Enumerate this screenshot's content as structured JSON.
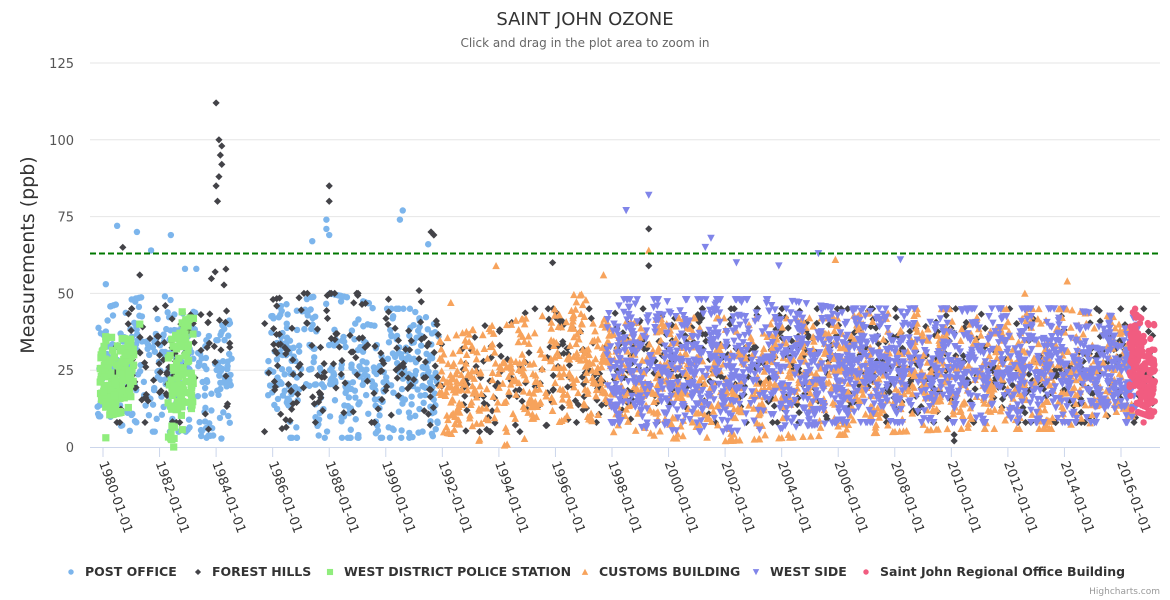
{
  "chart_data": {
    "type": "scatter",
    "title": "SAINT JOHN OZONE",
    "subtitle": "Click and drag in the plot area to zoom in",
    "xlabel": "",
    "ylabel": "Measurements (ppb)",
    "ylim": [
      0,
      125
    ],
    "yticks": [
      0,
      25,
      50,
      75,
      100,
      125
    ],
    "xlim_years": [
      1979.55,
      1981.0
    ],
    "x_range": [
      1979.55,
      2017.35
    ],
    "xticks": [
      "1980-01-01",
      "1982-01-01",
      "1984-01-01",
      "1986-01-01",
      "1988-01-01",
      "1990-01-01",
      "1992-01-01",
      "1994-01-01",
      "1996-01-01",
      "1998-01-01",
      "2000-01-01",
      "2002-01-01",
      "2004-01-01",
      "2006-01-01",
      "2008-01-01",
      "2010-01-01",
      "2012-01-01",
      "2014-01-01",
      "2016-01-01"
    ],
    "xtick_years": [
      1980,
      1982,
      1984,
      1986,
      1988,
      1990,
      1992,
      1994,
      1996,
      1998,
      2000,
      2002,
      2004,
      2006,
      2008,
      2010,
      2012,
      2014,
      2016
    ],
    "grid": true,
    "legend_position": "bottom",
    "threshold": {
      "value": 63,
      "color": "#007700",
      "style": "dashed"
    },
    "series": [
      {
        "name": "POST OFFICE",
        "marker": "circle",
        "color": "#7cb5ec",
        "ranges": [
          [
            1979.8,
            1984.6
          ],
          [
            1985.8,
            1991.9
          ]
        ],
        "envelope": [
          [
            1980,
            10,
            45
          ],
          [
            1981,
            5,
            48
          ],
          [
            1982,
            5,
            50
          ],
          [
            1983,
            5,
            45
          ],
          [
            1984,
            2,
            40
          ],
          [
            1986,
            3,
            45
          ],
          [
            1987,
            3,
            48
          ],
          [
            1988,
            3,
            50
          ],
          [
            1989,
            3,
            48
          ],
          [
            1990,
            3,
            45
          ],
          [
            1991,
            3,
            45
          ]
        ],
        "outliers": [
          [
            1980.5,
            72
          ],
          [
            1981.2,
            70
          ],
          [
            1982.4,
            69
          ],
          [
            1980.1,
            53
          ],
          [
            1987.4,
            67
          ],
          [
            1987.9,
            74
          ],
          [
            1987.9,
            71
          ],
          [
            1988.0,
            69
          ],
          [
            1990.6,
            77
          ],
          [
            1990.5,
            74
          ],
          [
            1991.5,
            66
          ],
          [
            1981.7,
            64
          ],
          [
            1982.9,
            58
          ],
          [
            1983.3,
            58
          ]
        ]
      },
      {
        "name": "FOREST HILLS",
        "marker": "diamond",
        "color": "#434348",
        "ranges": [
          [
            1980.2,
            1984.6
          ],
          [
            1985.7,
            1992.0
          ],
          [
            1992.7,
            1997.8
          ],
          [
            1998.0,
            2017.3
          ]
        ],
        "envelope": [
          [
            1981,
            8,
            45
          ],
          [
            1982,
            8,
            45
          ],
          [
            1983,
            8,
            50
          ],
          [
            1984,
            5,
            60
          ],
          [
            1986,
            5,
            48
          ],
          [
            1987,
            8,
            50
          ],
          [
            1988,
            8,
            50
          ],
          [
            1989,
            8,
            50
          ],
          [
            1990,
            8,
            50
          ],
          [
            1991,
            8,
            52
          ],
          [
            1993,
            5,
            40
          ],
          [
            1994,
            5,
            42
          ],
          [
            1995,
            5,
            45
          ],
          [
            1996,
            8,
            45
          ],
          [
            1997,
            8,
            45
          ]
        ],
        "outliers": [
          [
            1984.0,
            112
          ],
          [
            1984.1,
            100
          ],
          [
            1984.2,
            98
          ],
          [
            1984.15,
            95
          ],
          [
            1984.2,
            92
          ],
          [
            1984.1,
            88
          ],
          [
            1984.0,
            85
          ],
          [
            1984.05,
            80
          ],
          [
            1988.0,
            85
          ],
          [
            1988.0,
            80
          ],
          [
            1991.6,
            70
          ],
          [
            1991.7,
            69
          ],
          [
            1980.7,
            65
          ],
          [
            1981.3,
            56
          ],
          [
            1995.9,
            60
          ],
          [
            1999.3,
            71
          ],
          [
            1999.3,
            59
          ],
          [
            2010.1,
            2
          ],
          [
            2010.1,
            4
          ]
        ]
      },
      {
        "name": "WEST DISTRICT POLICE STATION",
        "marker": "square",
        "color": "#90ed7d",
        "ranges": [
          [
            1979.9,
            1981.1
          ],
          [
            1982.3,
            1983.2
          ]
        ],
        "envelope": [
          [
            1980,
            10,
            36
          ],
          [
            1981,
            12,
            35
          ],
          [
            1982.5,
            2,
            38
          ],
          [
            1983,
            8,
            42
          ]
        ],
        "outliers": [
          [
            1980.1,
            3
          ],
          [
            1982.5,
            0
          ],
          [
            1981.3,
            40
          ],
          [
            1982.8,
            44
          ]
        ]
      },
      {
        "name": "CUSTOMS BUILDING",
        "marker": "triangle",
        "color": "#f7a35c",
        "ranges": [
          [
            1991.9,
            2016.5
          ]
        ],
        "envelope": [
          [
            1992,
            5,
            35
          ],
          [
            1993,
            3,
            38
          ],
          [
            1994,
            0,
            40
          ],
          [
            1995,
            3,
            42
          ],
          [
            1996,
            8,
            45
          ],
          [
            1997,
            10,
            52
          ],
          [
            1998,
            5,
            40
          ],
          [
            2000,
            3,
            42
          ],
          [
            2002,
            2,
            42
          ],
          [
            2004,
            3,
            42
          ],
          [
            2006,
            4,
            42
          ],
          [
            2008,
            5,
            45
          ],
          [
            2010,
            6,
            45
          ],
          [
            2012,
            6,
            45
          ],
          [
            2014,
            6,
            45
          ],
          [
            2016,
            10,
            42
          ]
        ],
        "outliers": [
          [
            1992.3,
            47
          ],
          [
            1993.9,
            59
          ],
          [
            1997.7,
            56
          ],
          [
            1999.3,
            64
          ],
          [
            2005.9,
            61
          ],
          [
            2014.1,
            54
          ],
          [
            2012.6,
            50
          ]
        ]
      },
      {
        "name": "WEST SIDE",
        "marker": "triangle-down",
        "color": "#8085e9",
        "ranges": [
          [
            1997.8,
            2016.6
          ]
        ],
        "envelope": [
          [
            1998,
            8,
            48
          ],
          [
            2000,
            5,
            48
          ],
          [
            2002,
            5,
            48
          ],
          [
            2004,
            6,
            48
          ],
          [
            2006,
            8,
            45
          ],
          [
            2008,
            8,
            45
          ],
          [
            2010,
            8,
            45
          ],
          [
            2012,
            8,
            45
          ],
          [
            2014,
            8,
            45
          ],
          [
            2016,
            8,
            42
          ]
        ],
        "outliers": [
          [
            1998.5,
            77
          ],
          [
            1999.3,
            82
          ],
          [
            2001.5,
            68
          ],
          [
            2001.3,
            65
          ],
          [
            2002.4,
            60
          ],
          [
            2008.2,
            61
          ],
          [
            2003.9,
            59
          ],
          [
            2005.3,
            63
          ]
        ]
      },
      {
        "name": "Saint John Regional Office Building",
        "marker": "circle",
        "color": "#f15c80",
        "ranges": [
          [
            2016.3,
            2017.2
          ]
        ],
        "envelope": [
          [
            2016.4,
            12,
            44
          ],
          [
            2017.0,
            10,
            40
          ]
        ],
        "outliers": [
          [
            2016.5,
            45
          ],
          [
            2016.8,
            8
          ]
        ]
      }
    ],
    "credit": "Highcharts.com"
  }
}
